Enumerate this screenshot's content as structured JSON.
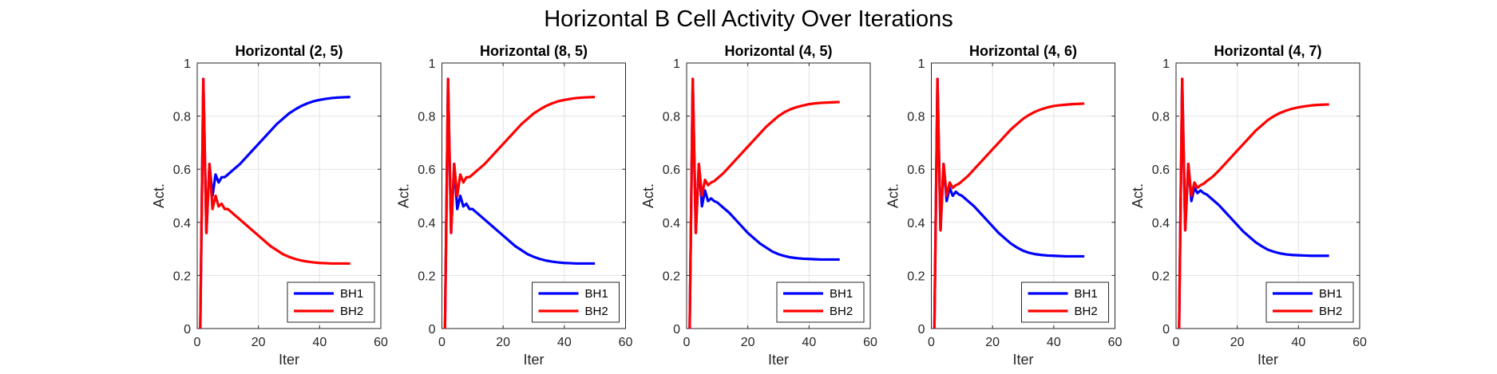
{
  "figure_title": "Horizontal B Cell Activity Over Iterations",
  "colors": {
    "BH1": "#0000ff",
    "BH2": "#ff0000"
  },
  "chart_data": [
    {
      "type": "line",
      "title": "Horizontal (2, 5)",
      "xlabel": "Iter",
      "ylabel": "Act.",
      "xlim": [
        0,
        60
      ],
      "ylim": [
        0,
        1
      ],
      "xticks": [
        "0",
        "20",
        "40",
        "60"
      ],
      "yticks": [
        "0",
        "0.2",
        "0.4",
        "0.6",
        "0.8",
        "1"
      ],
      "grid": true,
      "legend_position": "bottom-right",
      "x": [
        1,
        2,
        3,
        4,
        5,
        6,
        7,
        8,
        9,
        10,
        12,
        14,
        16,
        18,
        20,
        22,
        24,
        26,
        28,
        30,
        32,
        34,
        36,
        38,
        40,
        42,
        44,
        46,
        48,
        50
      ],
      "series": [
        {
          "name": "BH1",
          "values": [
            0,
            0.94,
            0.36,
            0.62,
            0.5,
            0.58,
            0.55,
            0.57,
            0.57,
            0.58,
            0.6,
            0.62,
            0.645,
            0.67,
            0.695,
            0.72,
            0.745,
            0.77,
            0.79,
            0.81,
            0.825,
            0.838,
            0.848,
            0.856,
            0.861,
            0.865,
            0.868,
            0.87,
            0.871,
            0.872
          ]
        },
        {
          "name": "BH2",
          "values": [
            0,
            0.94,
            0.36,
            0.62,
            0.45,
            0.5,
            0.46,
            0.47,
            0.45,
            0.45,
            0.43,
            0.41,
            0.39,
            0.37,
            0.35,
            0.33,
            0.31,
            0.295,
            0.28,
            0.27,
            0.262,
            0.256,
            0.252,
            0.249,
            0.247,
            0.246,
            0.245,
            0.245,
            0.245,
            0.245
          ]
        }
      ]
    },
    {
      "type": "line",
      "title": "Horizontal (8, 5)",
      "xlabel": "Iter",
      "ylabel": "Act.",
      "xlim": [
        0,
        60
      ],
      "ylim": [
        0,
        1
      ],
      "xticks": [
        "0",
        "20",
        "40",
        "60"
      ],
      "yticks": [
        "0",
        "0.2",
        "0.4",
        "0.6",
        "0.8",
        "1"
      ],
      "grid": true,
      "legend_position": "bottom-right",
      "x": [
        1,
        2,
        3,
        4,
        5,
        6,
        7,
        8,
        9,
        10,
        12,
        14,
        16,
        18,
        20,
        22,
        24,
        26,
        28,
        30,
        32,
        34,
        36,
        38,
        40,
        42,
        44,
        46,
        48,
        50
      ],
      "series": [
        {
          "name": "BH1",
          "values": [
            0,
            0.94,
            0.36,
            0.62,
            0.45,
            0.5,
            0.46,
            0.47,
            0.45,
            0.45,
            0.43,
            0.41,
            0.39,
            0.37,
            0.35,
            0.33,
            0.31,
            0.295,
            0.28,
            0.27,
            0.262,
            0.256,
            0.252,
            0.249,
            0.247,
            0.246,
            0.245,
            0.245,
            0.245,
            0.245
          ]
        },
        {
          "name": "BH2",
          "values": [
            0,
            0.94,
            0.36,
            0.62,
            0.5,
            0.58,
            0.55,
            0.57,
            0.57,
            0.58,
            0.6,
            0.62,
            0.645,
            0.67,
            0.695,
            0.72,
            0.745,
            0.77,
            0.79,
            0.81,
            0.825,
            0.838,
            0.848,
            0.856,
            0.861,
            0.865,
            0.868,
            0.87,
            0.871,
            0.872
          ]
        }
      ]
    },
    {
      "type": "line",
      "title": "Horizontal (4, 5)",
      "xlabel": "Iter",
      "ylabel": "Act.",
      "xlim": [
        0,
        60
      ],
      "ylim": [
        0,
        1
      ],
      "xticks": [
        "0",
        "20",
        "40",
        "60"
      ],
      "yticks": [
        "0",
        "0.2",
        "0.4",
        "0.6",
        "0.8",
        "1"
      ],
      "grid": true,
      "legend_position": "bottom-right",
      "x": [
        1,
        2,
        3,
        4,
        5,
        6,
        7,
        8,
        9,
        10,
        12,
        14,
        16,
        18,
        20,
        22,
        24,
        26,
        28,
        30,
        32,
        34,
        36,
        38,
        40,
        42,
        44,
        46,
        48,
        50
      ],
      "series": [
        {
          "name": "BH1",
          "values": [
            0,
            0.94,
            0.36,
            0.62,
            0.46,
            0.52,
            0.48,
            0.49,
            0.48,
            0.475,
            0.455,
            0.435,
            0.41,
            0.385,
            0.36,
            0.34,
            0.32,
            0.305,
            0.29,
            0.28,
            0.273,
            0.268,
            0.265,
            0.263,
            0.262,
            0.261,
            0.26,
            0.26,
            0.26,
            0.26
          ]
        },
        {
          "name": "BH2",
          "values": [
            0,
            0.94,
            0.36,
            0.62,
            0.5,
            0.56,
            0.54,
            0.55,
            0.555,
            0.565,
            0.585,
            0.61,
            0.635,
            0.66,
            0.685,
            0.71,
            0.735,
            0.76,
            0.78,
            0.8,
            0.815,
            0.826,
            0.834,
            0.84,
            0.845,
            0.848,
            0.85,
            0.851,
            0.852,
            0.853
          ]
        }
      ]
    },
    {
      "type": "line",
      "title": "Horizontal (4, 6)",
      "xlabel": "Iter",
      "ylabel": "Act.",
      "xlim": [
        0,
        60
      ],
      "ylim": [
        0,
        1
      ],
      "xticks": [
        "0",
        "20",
        "40",
        "60"
      ],
      "yticks": [
        "0",
        "0.2",
        "0.4",
        "0.6",
        "0.8",
        "1"
      ],
      "grid": true,
      "legend_position": "bottom-right",
      "x": [
        1,
        2,
        3,
        4,
        5,
        6,
        7,
        8,
        9,
        10,
        12,
        14,
        16,
        18,
        20,
        22,
        24,
        26,
        28,
        30,
        32,
        34,
        36,
        38,
        40,
        42,
        44,
        46,
        48,
        50
      ],
      "series": [
        {
          "name": "BH1",
          "values": [
            0,
            0.94,
            0.37,
            0.62,
            0.48,
            0.53,
            0.5,
            0.515,
            0.505,
            0.5,
            0.48,
            0.46,
            0.435,
            0.41,
            0.385,
            0.36,
            0.34,
            0.32,
            0.305,
            0.293,
            0.285,
            0.28,
            0.277,
            0.275,
            0.274,
            0.273,
            0.272,
            0.272,
            0.272,
            0.272
          ]
        },
        {
          "name": "BH2",
          "values": [
            0,
            0.94,
            0.37,
            0.62,
            0.5,
            0.55,
            0.53,
            0.54,
            0.545,
            0.555,
            0.575,
            0.6,
            0.625,
            0.65,
            0.675,
            0.7,
            0.725,
            0.75,
            0.77,
            0.79,
            0.805,
            0.817,
            0.826,
            0.833,
            0.838,
            0.841,
            0.843,
            0.845,
            0.846,
            0.847
          ]
        }
      ]
    },
    {
      "type": "line",
      "title": "Horizontal (4, 7)",
      "xlabel": "Iter",
      "ylabel": "Act.",
      "xlim": [
        0,
        60
      ],
      "ylim": [
        0,
        1
      ],
      "xticks": [
        "0",
        "20",
        "40",
        "60"
      ],
      "yticks": [
        "0",
        "0.2",
        "0.4",
        "0.6",
        "0.8",
        "1"
      ],
      "grid": true,
      "legend_position": "bottom-right",
      "x": [
        1,
        2,
        3,
        4,
        5,
        6,
        7,
        8,
        9,
        10,
        12,
        14,
        16,
        18,
        20,
        22,
        24,
        26,
        28,
        30,
        32,
        34,
        36,
        38,
        40,
        42,
        44,
        46,
        48,
        50
      ],
      "series": [
        {
          "name": "BH1",
          "values": [
            0,
            0.94,
            0.37,
            0.62,
            0.48,
            0.53,
            0.51,
            0.52,
            0.51,
            0.505,
            0.485,
            0.465,
            0.44,
            0.415,
            0.39,
            0.365,
            0.345,
            0.325,
            0.31,
            0.297,
            0.289,
            0.283,
            0.279,
            0.277,
            0.276,
            0.275,
            0.274,
            0.274,
            0.274,
            0.274
          ]
        },
        {
          "name": "BH2",
          "values": [
            0,
            0.94,
            0.37,
            0.62,
            0.5,
            0.55,
            0.53,
            0.54,
            0.545,
            0.555,
            0.572,
            0.595,
            0.62,
            0.645,
            0.67,
            0.695,
            0.72,
            0.745,
            0.765,
            0.785,
            0.8,
            0.812,
            0.821,
            0.828,
            0.833,
            0.837,
            0.84,
            0.842,
            0.843,
            0.844
          ]
        }
      ]
    }
  ]
}
